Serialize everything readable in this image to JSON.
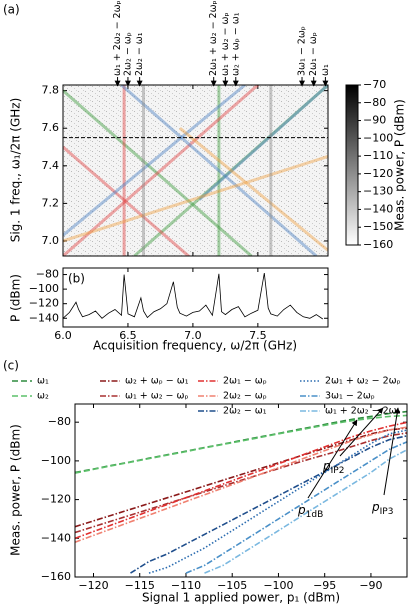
{
  "chart_data": [
    {
      "type": "heatmap",
      "panel": "(a)",
      "ylabel": "Sig. 1 freq., ω₁/2π (GHz)",
      "xlim": [
        6,
        8.04
      ],
      "ylim": [
        6.92,
        7.83
      ],
      "yticks": [
        {
          "value": 7,
          "label": "7.0"
        },
        7.2,
        7.4,
        7.6,
        7.8
      ],
      "hline": 7.55,
      "series": [
        {
          "color": "#3a9a3a",
          "x": [
            6.55,
            8.04
          ],
          "values": [
            6.92,
            7.83
          ]
        },
        {
          "color": "#3a9a3a",
          "x": [
            7.45,
            6.0
          ],
          "values": [
            6.92,
            7.8
          ]
        },
        {
          "color": "#3a9a3a",
          "x": [
            7.2,
            7.2
          ],
          "values": [
            6.92,
            7.83
          ]
        },
        {
          "color": "#e04040",
          "x": [
            6.0,
            7.5
          ],
          "values": [
            6.92,
            7.83
          ]
        },
        {
          "color": "#e04040",
          "x": [
            7.0,
            6.0
          ],
          "values": [
            6.9,
            7.5
          ]
        },
        {
          "color": "#e04040",
          "x": [
            6.47,
            6.47
          ],
          "values": [
            6.92,
            7.83
          ]
        },
        {
          "color": "#4a7fc0",
          "x": [
            6.0,
            7.4
          ],
          "values": [
            7.03,
            7.83
          ]
        },
        {
          "color": "#4a7fc0",
          "x": [
            6.45,
            7.95
          ],
          "values": [
            7.83,
            6.92
          ]
        },
        {
          "color": "#4a7fc0",
          "x": [
            7.05,
            8.04
          ],
          "values": [
            7.22,
            7.83
          ]
        },
        {
          "color": "#f0a040",
          "x": [
            6.0,
            8.04
          ],
          "values": [
            7.0,
            7.45
          ]
        },
        {
          "color": "#f0a040",
          "x": [
            8.04,
            6.9
          ],
          "values": [
            6.95,
            7.6
          ]
        },
        {
          "color": "#888888",
          "x": [
            6.62,
            6.62
          ],
          "values": [
            6.92,
            7.83
          ]
        },
        {
          "color": "#888888",
          "x": [
            7.6,
            7.6
          ],
          "values": [
            6.92,
            7.83
          ]
        }
      ],
      "top_labels": [
        {
          "label": "ω₁ + 2ω₂ − 2ωₚ",
          "x": 6.42
        },
        {
          "label": "2ω₂ − ωₚ",
          "x": 6.5
        },
        {
          "label": "2ω₂ − ω₁",
          "x": 6.59
        },
        {
          "label": "2ω₁ + ω₂ − 2ωₚ",
          "x": 7.16
        },
        {
          "label": "ω₁ + ω₂ − ωₚ",
          "x": 7.25
        },
        {
          "label": "ω₂ + ωₚ − ω₁",
          "x": 7.33
        },
        {
          "label": "3ω₁ − 2ωₚ",
          "x": 7.84
        },
        {
          "label": "2ω₁ − ωₚ",
          "x": 7.93
        },
        {
          "label": "ω₁",
          "x": 8.02
        }
      ],
      "colorbar": {
        "label": "Meas. power, P (dBm)",
        "lim": [
          -160,
          -70
        ],
        "ticks": [
          {
            "value": -70,
            "label": "−70"
          },
          {
            "value": -80,
            "label": "−80"
          },
          {
            "value": -90,
            "label": "−90"
          },
          {
            "value": -100,
            "label": "−100"
          },
          {
            "value": -110,
            "label": "−110"
          },
          {
            "value": -120,
            "label": "−120"
          },
          {
            "value": -130,
            "label": "−130"
          },
          {
            "value": -140,
            "label": "−140"
          },
          {
            "value": -150,
            "label": "−150"
          },
          {
            "value": -160,
            "label": "−160"
          }
        ]
      }
    },
    {
      "type": "line",
      "panel": "(b)",
      "ylabel": "P (dBm)",
      "xlabel": "Acquisition frequency, ω/2π (GHz)",
      "xlim": [
        6,
        8.04
      ],
      "ylim": [
        -152,
        -71
      ],
      "xticks": [
        {
          "value": 6,
          "label": "6.0"
        },
        6.5,
        {
          "value": 7,
          "label": "7.0"
        },
        7.5
      ],
      "yticks": [
        {
          "value": -80,
          "label": "−80"
        },
        {
          "value": -100,
          "label": "−100"
        },
        {
          "value": -120,
          "label": "−120"
        },
        {
          "value": -140,
          "label": "−140"
        }
      ],
      "color": "#000000",
      "x": [
        6.0,
        6.05,
        6.1,
        6.12,
        6.15,
        6.2,
        6.25,
        6.3,
        6.35,
        6.4,
        6.45,
        6.47,
        6.5,
        6.55,
        6.6,
        6.62,
        6.65,
        6.7,
        6.75,
        6.8,
        6.85,
        6.88,
        6.9,
        6.95,
        7.0,
        7.05,
        7.1,
        7.15,
        7.2,
        7.22,
        7.25,
        7.3,
        7.35,
        7.4,
        7.45,
        7.5,
        7.55,
        7.58,
        7.6,
        7.65,
        7.7,
        7.75,
        7.8,
        7.85,
        7.9,
        7.95,
        8.0
      ],
      "values": [
        -140,
        -132,
        -118,
        -128,
        -138,
        -135,
        -130,
        -140,
        -133,
        -128,
        -136,
        -80,
        -134,
        -138,
        -112,
        -130,
        -139,
        -131,
        -127,
        -120,
        -90,
        -125,
        -133,
        -137,
        -132,
        -130,
        -122,
        -136,
        -79,
        -131,
        -135,
        -128,
        -124,
        -138,
        -133,
        -129,
        -78,
        -126,
        -134,
        -137,
        -128,
        -122,
        -132,
        -138,
        -140,
        -135,
        -141
      ]
    },
    {
      "type": "line",
      "panel": "(c)",
      "xlabel": "Signal 1 applied power, p₁ (dBm)",
      "ylabel": "Meas. power, P (dBm)",
      "xlim": [
        -122,
        -86.1
      ],
      "ylim": [
        -160,
        -70.6
      ],
      "xticks": [
        {
          "value": -120,
          "label": "−120"
        },
        {
          "value": -115,
          "label": "−115"
        },
        {
          "value": -110,
          "label": "−110"
        },
        {
          "value": -105,
          "label": "−105"
        },
        {
          "value": -100,
          "label": "−100"
        },
        {
          "value": -95,
          "label": "−95"
        },
        {
          "value": -90,
          "label": "−90"
        }
      ],
      "yticks": [
        {
          "value": -80,
          "label": "−80"
        },
        {
          "value": -100,
          "label": "−100"
        },
        {
          "value": -120,
          "label": "−120"
        },
        {
          "value": -140,
          "label": "−140"
        },
        {
          "value": -160,
          "label": "−160"
        }
      ],
      "x": [
        -122,
        -120,
        -118,
        -116,
        -114,
        -112,
        -110,
        -108,
        -106,
        -104,
        -102,
        -100,
        -98,
        -96,
        -94,
        -92,
        -90,
        -88,
        -86
      ],
      "series": [
        {
          "name": "ω₁",
          "color": "#2e8b3e",
          "dash": "dashed",
          "values": [
            -106,
            -104.2,
            -102.3,
            -100.5,
            -98.6,
            -96.8,
            -95,
            -93.1,
            -91.3,
            -89.4,
            -87.6,
            -85.8,
            -83.9,
            -82.1,
            -80.2,
            -78.5,
            -77,
            -75.5,
            -74.5
          ]
        },
        {
          "name": "ω₂",
          "color": "#5cc06a",
          "dash": "dashed",
          "values": [
            -106.3,
            -104.4,
            -102.5,
            -100.7,
            -98.8,
            -97,
            -95.2,
            -93.3,
            -91.5,
            -89.7,
            -87.9,
            -86,
            -84.3,
            -82.5,
            -80.8,
            -79.2,
            -78,
            -77,
            -76.5
          ]
        },
        {
          "name": "ω₂ + ωₚ − ω₁",
          "color": "#8b1a1a",
          "dash": "dashdot",
          "values": [
            -134,
            -131,
            -128,
            -125,
            -122,
            -119,
            -116,
            -113,
            -110,
            -107,
            -104,
            -101,
            -98,
            -95,
            -92,
            -89,
            -86,
            -84,
            -83
          ]
        },
        {
          "name": "ω₁ + ω₂ − ωₚ",
          "color": "#a83030",
          "dash": "dashdot",
          "values": [
            -137,
            -134,
            -131,
            -128,
            -125,
            -122,
            -119,
            -116,
            -113,
            -110,
            -107,
            -104,
            -101,
            -98.2,
            -95.5,
            -92.5,
            -89.5,
            -87,
            -85.5
          ]
        },
        {
          "name": "2ω₁ − ωₚ",
          "color": "#e03030",
          "dash": "dashdot",
          "values": [
            -140,
            -136.5,
            -133,
            -129.5,
            -126,
            -122.5,
            -119,
            -115.5,
            -112,
            -108.5,
            -105,
            -101.5,
            -98,
            -94.5,
            -91,
            -87.5,
            -84.5,
            -82,
            -80
          ]
        },
        {
          "name": "2ω₂ − ωₚ",
          "color": "#f08070",
          "dash": "dashdot",
          "values": [
            -142,
            -138.5,
            -135,
            -131.5,
            -128,
            -124.5,
            -121,
            -117.5,
            -114,
            -110.5,
            -107,
            -103.5,
            -100,
            -96.5,
            -93,
            -89.5,
            -86.5,
            -84,
            -82.5
          ]
        },
        {
          "name": "2ω₂ − ω₁",
          "color": "#1f4e8c",
          "dash": "dashdot",
          "values": [
            null,
            null,
            null,
            -158,
            -152,
            -148,
            -143,
            -138,
            -133,
            -128,
            -123,
            -118,
            -113,
            -108,
            -103,
            -98,
            -93,
            -89,
            -87
          ]
        },
        {
          "name": "2ω₁ + ω₂ − 2ωₚ",
          "color": "#2b6cb0",
          "dash": "dotted",
          "values": [
            null,
            null,
            null,
            null,
            -158,
            -155,
            -150,
            -145,
            -139,
            -133,
            -127,
            -121,
            -115,
            -109,
            -103,
            -97,
            -91,
            -86,
            -84
          ]
        },
        {
          "name": "3ω₁ − 2ωₚ",
          "color": "#4a90c8",
          "dash": "dashdot",
          "values": [
            null,
            null,
            null,
            null,
            null,
            null,
            -158,
            -154,
            -148,
            -142,
            -136,
            -130,
            -124,
            -118,
            -112,
            -106,
            -100,
            -94,
            -90
          ]
        },
        {
          "name": "ω₁ + 2ω₂ − 2ωₚ",
          "color": "#7ab8e0",
          "dash": "dashdot",
          "values": [
            null,
            null,
            null,
            null,
            null,
            null,
            null,
            -158,
            -154,
            -148,
            -142,
            -136,
            -130,
            -124,
            -118,
            -112,
            -106,
            -99,
            -94
          ]
        }
      ],
      "annotations": [
        {
          "main": "p",
          "sub": "1dB"
        },
        {
          "main": "p",
          "sub": "IP2"
        },
        {
          "main": "p",
          "sub": "IP3"
        }
      ]
    }
  ]
}
